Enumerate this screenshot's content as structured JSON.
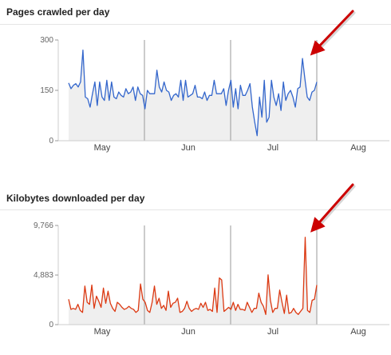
{
  "page": {
    "background": "#ffffff"
  },
  "chart_data": [
    {
      "type": "area",
      "title": "Pages crawled per day",
      "xlabel": "",
      "ylabel": "",
      "ylim": [
        0,
        300
      ],
      "y_ticks": [
        "300",
        "150",
        "0"
      ],
      "x_labels": [
        "May",
        "Jun",
        "Jul",
        "Aug"
      ],
      "grid": false,
      "line_color": "#3366cc",
      "fill_color": "#efefef",
      "annotation": {
        "type": "arrow",
        "color": "#cc0000",
        "points_to": "spike near end of data"
      },
      "series": [
        {
          "values": [
            172,
            155,
            165,
            170,
            160,
            175,
            270,
            130,
            125,
            100,
            140,
            175,
            105,
            175,
            130,
            120,
            180,
            120,
            175,
            130,
            125,
            145,
            135,
            130,
            155,
            140,
            145,
            160,
            120,
            160,
            140,
            135,
            95,
            150,
            140,
            140,
            140,
            210,
            160,
            145,
            175,
            150,
            145,
            120,
            135,
            140,
            130,
            180,
            120,
            180,
            130,
            135,
            140,
            165,
            130,
            130,
            125,
            145,
            120,
            135,
            135,
            180,
            140,
            140,
            140,
            155,
            105,
            150,
            180,
            100,
            155,
            95,
            165,
            135,
            135,
            150,
            170,
            100,
            55,
            15,
            130,
            70,
            180,
            55,
            70,
            180,
            130,
            105,
            140,
            90,
            175,
            120,
            140,
            150,
            130,
            100,
            155,
            160,
            245,
            185,
            130,
            120,
            145,
            150,
            175
          ]
        }
      ]
    },
    {
      "type": "area",
      "title": "Kilobytes downloaded per day",
      "xlabel": "",
      "ylabel": "",
      "ylim": [
        0,
        9766
      ],
      "y_ticks": [
        "9,766",
        "4,883",
        "0"
      ],
      "x_labels": [
        "May",
        "Jun",
        "Jul",
        "Aug"
      ],
      "grid": false,
      "line_color": "#dc3912",
      "fill_color": "#efefef",
      "annotation": {
        "type": "arrow",
        "color": "#cc0000",
        "points_to": "spike near end of data"
      },
      "series": [
        {
          "values": [
            2500,
            1500,
            1600,
            1500,
            2000,
            1400,
            1200,
            3800,
            2200,
            2000,
            3900,
            1600,
            2800,
            2300,
            1700,
            3600,
            2100,
            3300,
            2100,
            1600,
            1300,
            2200,
            2000,
            1700,
            1500,
            1600,
            1800,
            1600,
            1500,
            1200,
            1400,
            4000,
            2500,
            2200,
            1400,
            1200,
            2200,
            3800,
            2000,
            2600,
            1600,
            1900,
            1400,
            3300,
            1700,
            2100,
            2200,
            2600,
            1200,
            1300,
            1600,
            2300,
            1600,
            1300,
            1500,
            1600,
            1500,
            2100,
            1700,
            2200,
            1400,
            1500,
            1300,
            3600,
            1200,
            4600,
            4400,
            1300,
            1500,
            1700,
            1500,
            2200,
            1400,
            2000,
            1500,
            1500,
            1400,
            2200,
            1700,
            1200,
            1600,
            1600,
            3100,
            2200,
            1800,
            1000,
            4900,
            2400,
            1200,
            1600,
            1600,
            3400,
            2200,
            1100,
            2900,
            1100,
            1200,
            1600,
            1200,
            1000,
            1300,
            1600,
            8600,
            1400,
            1200,
            2400,
            2500,
            3900
          ]
        }
      ]
    }
  ]
}
